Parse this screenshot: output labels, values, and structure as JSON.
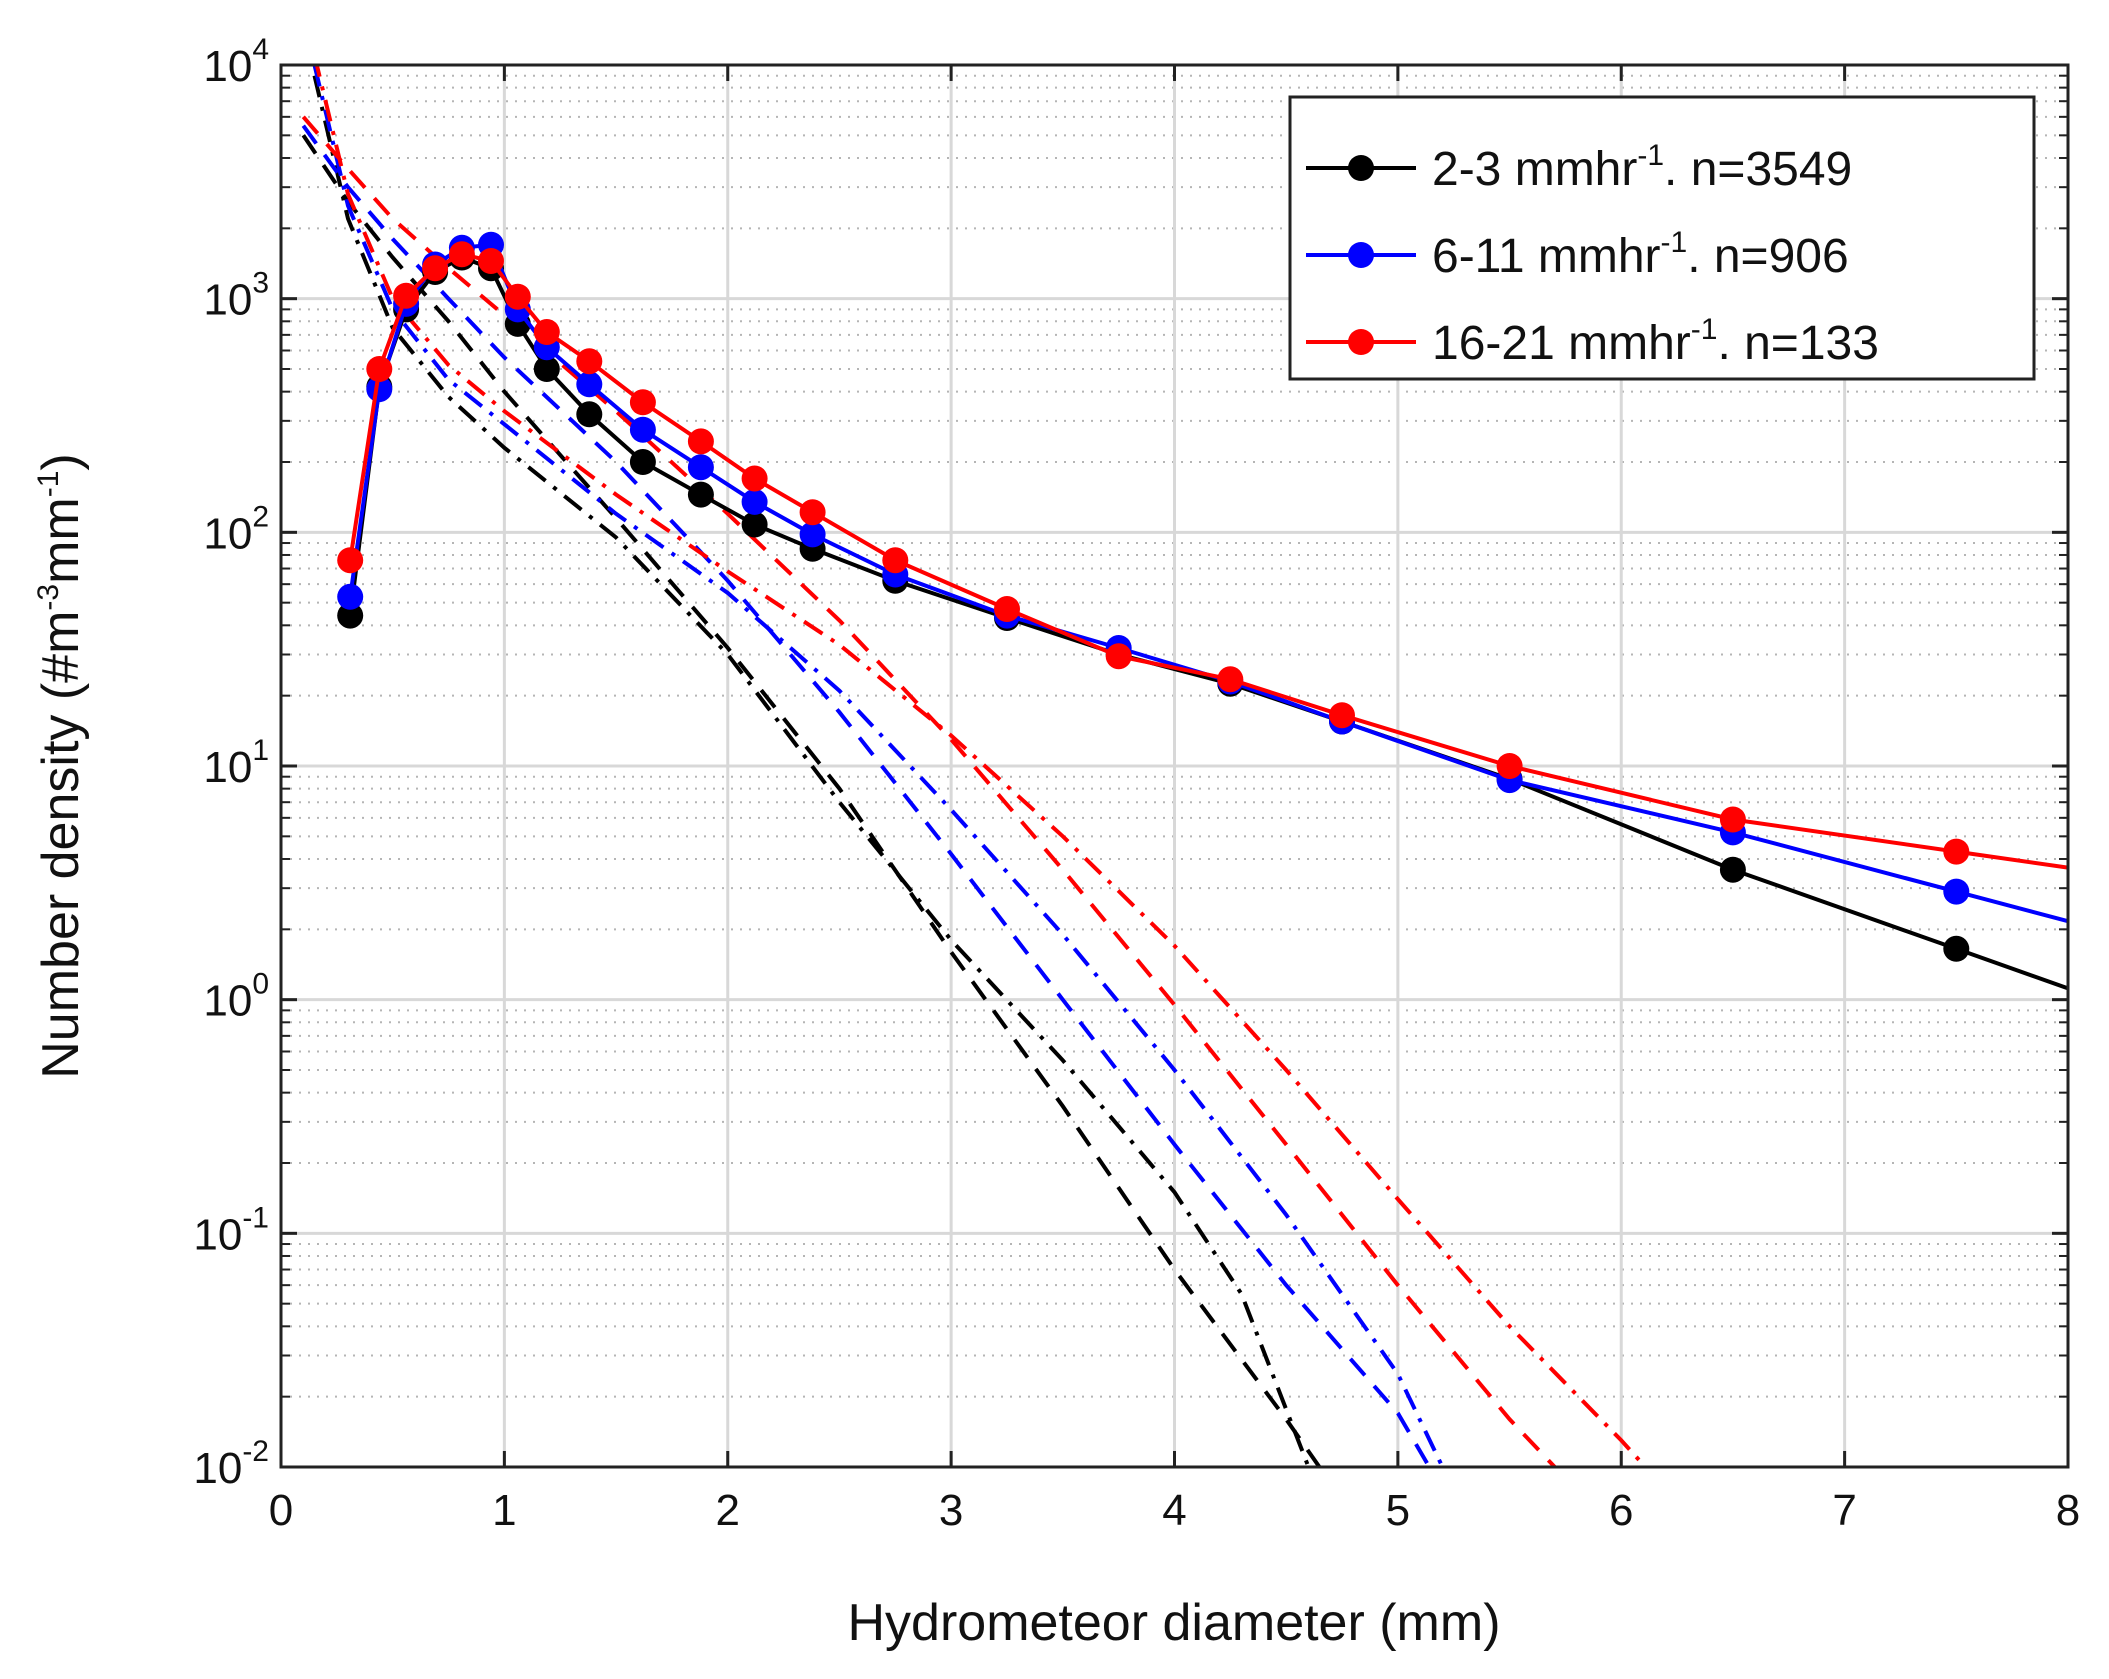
{
  "chart_data": {
    "type": "line",
    "title": "",
    "xlabel": "Hydrometeor diameter (mm)",
    "ylabel": {
      "main": "Number density (#m",
      "sup1": "-3",
      "mid": "mm",
      "sup2": "-1",
      "end": ")"
    },
    "xscale": "linear",
    "yscale": "log",
    "xlim": [
      0,
      8
    ],
    "ylim": [
      0.01,
      10000
    ],
    "grid": true,
    "legend_position": "top-right",
    "x_ticks": [
      0,
      1,
      2,
      3,
      4,
      5,
      6,
      7,
      8
    ],
    "x_tick_labels": [
      "0",
      "1",
      "2",
      "3",
      "4",
      "5",
      "6",
      "7",
      "8"
    ],
    "y_ticks": [
      {
        "value": 0.01,
        "base": "10",
        "exp": "-2"
      },
      {
        "value": 0.1,
        "base": "10",
        "exp": "-1"
      },
      {
        "value": 1,
        "base": "10",
        "exp": "0"
      },
      {
        "value": 10,
        "base": "10",
        "exp": "1"
      },
      {
        "value": 100,
        "base": "10",
        "exp": "2"
      },
      {
        "value": 1000,
        "base": "10",
        "exp": "3"
      },
      {
        "value": 10000,
        "base": "10",
        "exp": "4"
      }
    ],
    "series": [
      {
        "name": "2-3 mmhr-1. n=3549",
        "legend": {
          "pre": "2-3 mmhr",
          "sup": "-1",
          "post": ". n=3549"
        },
        "color": "#000000",
        "x": [
          0.31,
          0.44,
          0.56,
          0.69,
          0.81,
          0.94,
          1.06,
          1.19,
          1.38,
          1.62,
          1.88,
          2.12,
          2.38,
          2.75,
          3.25,
          3.75,
          4.25,
          4.75,
          5.5,
          6.5,
          7.5
        ],
        "y": [
          44,
          420,
          900,
          1300,
          1500,
          1350,
          780,
          500,
          320,
          200,
          145,
          108,
          85,
          62,
          43,
          30,
          22.5,
          15.5,
          8.8,
          3.6,
          1.65
        ],
        "fit_dashed": [
          [
            0.1,
            5000
          ],
          [
            0.3,
            2600
          ],
          [
            0.5,
            1500
          ],
          [
            0.75,
            800
          ],
          [
            1,
            400
          ],
          [
            1.5,
            115
          ],
          [
            2,
            32
          ],
          [
            2.5,
            8
          ],
          [
            3,
            1.6
          ],
          [
            3.5,
            0.35
          ],
          [
            4,
            0.07
          ],
          [
            4.5,
            0.016
          ],
          [
            4.7,
            0.0085
          ]
        ],
        "fit_dashdot": [
          [
            0.15,
            9000
          ],
          [
            0.3,
            2200
          ],
          [
            0.5,
            750
          ],
          [
            0.75,
            380
          ],
          [
            1,
            230
          ],
          [
            1.5,
            95
          ],
          [
            2,
            30
          ],
          [
            2.5,
            7
          ],
          [
            3,
            1.8
          ],
          [
            3.5,
            0.55
          ],
          [
            4,
            0.15
          ],
          [
            4.3,
            0.055
          ],
          [
            4.6,
            0.01
          ]
        ]
      },
      {
        "name": "6-11 mmhr-1. n=906",
        "legend": {
          "pre": "6-11 mmhr",
          "sup": "-1",
          "post": ". n=906"
        },
        "color": "#0000ff",
        "x": [
          0.31,
          0.44,
          0.56,
          0.69,
          0.81,
          0.94,
          1.06,
          1.19,
          1.38,
          1.62,
          1.88,
          2.12,
          2.38,
          2.75,
          3.25,
          3.75,
          4.25,
          4.75,
          5.5,
          6.5,
          7.5
        ],
        "y": [
          53,
          410,
          950,
          1400,
          1650,
          1700,
          900,
          620,
          430,
          275,
          190,
          135,
          98,
          66,
          44,
          32,
          23,
          15.5,
          8.7,
          5.2,
          2.9
        ],
        "fit_dashed": [
          [
            0.1,
            5500
          ],
          [
            0.3,
            3000
          ],
          [
            0.5,
            1800
          ],
          [
            0.75,
            1000
          ],
          [
            1,
            560
          ],
          [
            1.5,
            200
          ],
          [
            2,
            62
          ],
          [
            2.5,
            17
          ],
          [
            3,
            4.2
          ],
          [
            3.5,
            1.0
          ],
          [
            4,
            0.24
          ],
          [
            4.5,
            0.06
          ],
          [
            5,
            0.017
          ],
          [
            5.2,
            0.008
          ]
        ],
        "fit_dashdot": [
          [
            0.15,
            10000
          ],
          [
            0.3,
            2500
          ],
          [
            0.5,
            900
          ],
          [
            0.75,
            450
          ],
          [
            1,
            290
          ],
          [
            1.5,
            120
          ],
          [
            2,
            55
          ],
          [
            2.5,
            21
          ],
          [
            3,
            6.5
          ],
          [
            3.5,
            1.9
          ],
          [
            4,
            0.5
          ],
          [
            4.5,
            0.12
          ],
          [
            5,
            0.025
          ],
          [
            5.2,
            0.01
          ]
        ]
      },
      {
        "name": "16-21 mmhr-1. n=133",
        "legend": {
          "pre": "16-21 mmhr",
          "sup": "-1",
          "post": ". n=133"
        },
        "color": "#ff0000",
        "x": [
          0.31,
          0.44,
          0.56,
          0.69,
          0.81,
          0.94,
          1.06,
          1.19,
          1.38,
          1.62,
          1.88,
          2.12,
          2.38,
          2.75,
          3.25,
          3.75,
          4.25,
          4.75,
          5.5,
          6.5,
          7.5
        ],
        "y": [
          76,
          500,
          1030,
          1350,
          1550,
          1450,
          1020,
          720,
          540,
          360,
          245,
          170,
          122,
          76,
          47,
          29.5,
          23.5,
          16.5,
          10,
          5.9,
          4.3
        ],
        "fit_dashed": [
          [
            0.1,
            6000
          ],
          [
            0.3,
            3600
          ],
          [
            0.5,
            2200
          ],
          [
            0.75,
            1350
          ],
          [
            1,
            850
          ],
          [
            1.5,
            330
          ],
          [
            2,
            120
          ],
          [
            2.5,
            42
          ],
          [
            3,
            13
          ],
          [
            3.5,
            3.6
          ],
          [
            4,
            0.95
          ],
          [
            4.5,
            0.24
          ],
          [
            5,
            0.06
          ],
          [
            5.5,
            0.016
          ],
          [
            6,
            0.005
          ]
        ],
        "fit_dashdot": [
          [
            0.15,
            11000
          ],
          [
            0.3,
            2800
          ],
          [
            0.5,
            1000
          ],
          [
            0.75,
            520
          ],
          [
            1,
            330
          ],
          [
            1.5,
            145
          ],
          [
            2,
            68
          ],
          [
            2.5,
            33
          ],
          [
            3,
            13.5
          ],
          [
            3.5,
            5
          ],
          [
            4,
            1.7
          ],
          [
            4.5,
            0.5
          ],
          [
            5,
            0.14
          ],
          [
            5.5,
            0.04
          ],
          [
            6,
            0.013
          ],
          [
            6.2,
            0.008
          ]
        ]
      }
    ]
  }
}
